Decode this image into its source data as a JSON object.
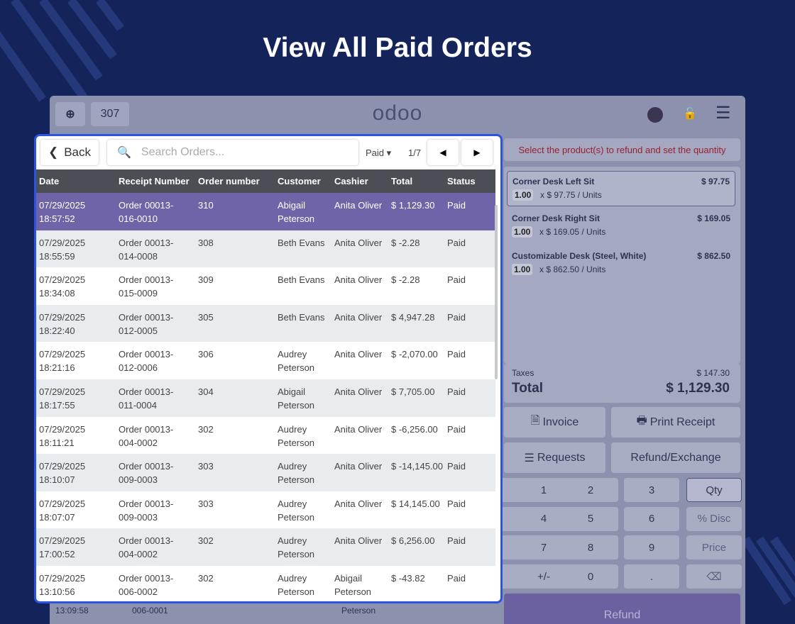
{
  "header": {
    "title": "View All Paid Orders"
  },
  "topbar": {
    "order_count": "307",
    "logo": "odoo"
  },
  "popup": {
    "back": "Back",
    "search_placeholder": "Search Orders...",
    "filter": "Paid",
    "page": "1/7",
    "table": {
      "columns": [
        "Date",
        "Receipt Number",
        "Order number",
        "Customer",
        "Cashier",
        "Total",
        "Status"
      ],
      "rows": [
        [
          [
            "07/29/2025",
            "18:57:52"
          ],
          [
            "Order 00013-",
            "016-0010"
          ],
          [
            "310"
          ],
          [
            "Abigail",
            "Peterson"
          ],
          [
            "Anita Oliver"
          ],
          [
            "$ 1,129.30"
          ],
          [
            "Paid"
          ]
        ],
        [
          [
            "07/29/2025",
            "18:55:59"
          ],
          [
            "Order 00013-",
            "014-0008"
          ],
          [
            "308"
          ],
          [
            "Beth Evans"
          ],
          [
            "Anita Oliver"
          ],
          [
            "$ -2.28"
          ],
          [
            "Paid"
          ]
        ],
        [
          [
            "07/29/2025",
            "18:34:08"
          ],
          [
            "Order 00013-",
            "015-0009"
          ],
          [
            "309"
          ],
          [
            "Beth Evans"
          ],
          [
            "Anita Oliver"
          ],
          [
            "$ -2.28"
          ],
          [
            "Paid"
          ]
        ],
        [
          [
            "07/29/2025",
            "18:22:40"
          ],
          [
            "Order 00013-",
            "012-0005"
          ],
          [
            "305"
          ],
          [
            "Beth Evans"
          ],
          [
            "Anita Oliver"
          ],
          [
            "$ 4,947.28"
          ],
          [
            "Paid"
          ]
        ],
        [
          [
            "07/29/2025",
            "18:21:16"
          ],
          [
            "Order 00013-",
            "012-0006"
          ],
          [
            "306"
          ],
          [
            "Audrey",
            "Peterson"
          ],
          [
            "Anita Oliver"
          ],
          [
            "$ -2,070.00"
          ],
          [
            "Paid"
          ]
        ],
        [
          [
            "07/29/2025",
            "18:17:55"
          ],
          [
            "Order 00013-",
            "011-0004"
          ],
          [
            "304"
          ],
          [
            "Abigail",
            "Peterson"
          ],
          [
            "Anita Oliver"
          ],
          [
            "$ 7,705.00"
          ],
          [
            "Paid"
          ]
        ],
        [
          [
            "07/29/2025",
            "18:11:21"
          ],
          [
            "Order 00013-",
            "004-0002"
          ],
          [
            "302"
          ],
          [
            "Audrey",
            "Peterson"
          ],
          [
            "Anita Oliver"
          ],
          [
            "$ -6,256.00"
          ],
          [
            "Paid"
          ]
        ],
        [
          [
            "07/29/2025",
            "18:10:07"
          ],
          [
            "Order 00013-",
            "009-0003"
          ],
          [
            "303"
          ],
          [
            "Audrey",
            "Peterson"
          ],
          [
            "Anita Oliver"
          ],
          [
            "$ -14,145.00"
          ],
          [
            "Paid"
          ]
        ],
        [
          [
            "07/29/2025",
            "18:07:07"
          ],
          [
            "Order 00013-",
            "009-0003"
          ],
          [
            "303"
          ],
          [
            "Audrey",
            "Peterson"
          ],
          [
            "Anita Oliver"
          ],
          [
            "$ 14,145.00"
          ],
          [
            "Paid"
          ]
        ],
        [
          [
            "07/29/2025",
            "17:00:52"
          ],
          [
            "Order 00013-",
            "004-0002"
          ],
          [
            "302"
          ],
          [
            "Audrey",
            "Peterson"
          ],
          [
            "Anita Oliver"
          ],
          [
            "$ 6,256.00"
          ],
          [
            "Paid"
          ]
        ],
        [
          [
            "07/29/2025",
            "13:10:56"
          ],
          [
            "Order 00013-",
            "006-0002"
          ],
          [
            "302"
          ],
          [
            "Audrey",
            "Peterson"
          ],
          [
            "Abigail",
            "Peterson"
          ],
          [
            "$ -43.82"
          ],
          [
            "Paid"
          ]
        ]
      ]
    }
  },
  "background_row": [
    "13:09:58",
    "006-0001",
    "Peterson"
  ],
  "refund_panel": {
    "hint": "Select the product(s) to refund and set the quantity",
    "lines": [
      {
        "name": "Corner Desk Left Sit",
        "qty": "1.00",
        "unit": "x $ 97.75 / Units",
        "price": "$ 97.75"
      },
      {
        "name": "Corner Desk Right Sit",
        "qty": "1.00",
        "unit": "x $ 169.05 / Units",
        "price": "$ 169.05"
      },
      {
        "name": "Customizable Desk (Steel, White)",
        "qty": "1.00",
        "unit": "x $ 862.50 / Units",
        "price": "$ 862.50"
      }
    ],
    "taxes_label": "Taxes",
    "taxes": "$ 147.30",
    "total_label": "Total",
    "total": "$ 1,129.30",
    "buttons": [
      "Invoice",
      "Print Receipt",
      "Requests",
      "Refund/Exchange"
    ],
    "keypad": [
      "1",
      "2",
      "3",
      "Qty",
      "4",
      "5",
      "6",
      "% Disc",
      "7",
      "8",
      "9",
      "Price",
      "+/-",
      "0",
      ".",
      "⌫"
    ],
    "refund": "Refund"
  }
}
